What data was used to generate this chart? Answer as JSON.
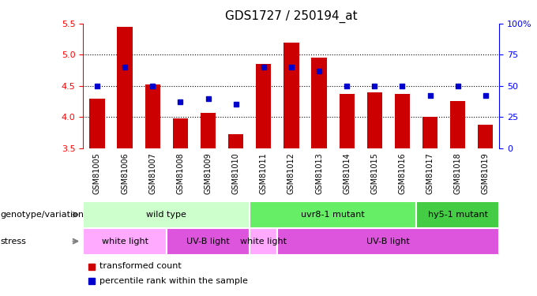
{
  "title": "GDS1727 / 250194_at",
  "samples": [
    "GSM81005",
    "GSM81006",
    "GSM81007",
    "GSM81008",
    "GSM81009",
    "GSM81010",
    "GSM81011",
    "GSM81012",
    "GSM81013",
    "GSM81014",
    "GSM81015",
    "GSM81016",
    "GSM81017",
    "GSM81018",
    "GSM81019"
  ],
  "transformed_count": [
    4.3,
    5.45,
    4.52,
    3.97,
    4.07,
    3.72,
    4.85,
    5.2,
    4.95,
    4.37,
    4.4,
    4.37,
    4.0,
    4.25,
    3.87
  ],
  "percentile_rank": [
    50,
    65,
    50,
    37,
    40,
    35,
    65,
    65,
    62,
    50,
    50,
    50,
    42,
    50,
    42
  ],
  "ylim": [
    3.5,
    5.5
  ],
  "yticks_left": [
    3.5,
    4.0,
    4.5,
    5.0,
    5.5
  ],
  "yticks_right": [
    0,
    25,
    50,
    75,
    100
  ],
  "bar_color": "#cc0000",
  "dot_color": "#0000cc",
  "bar_width": 0.55,
  "genotype_labels": [
    {
      "label": "wild type",
      "start": 0,
      "end": 6,
      "color": "#ccffcc"
    },
    {
      "label": "uvr8-1 mutant",
      "start": 6,
      "end": 12,
      "color": "#66ee66"
    },
    {
      "label": "hy5-1 mutant",
      "start": 12,
      "end": 15,
      "color": "#44cc44"
    }
  ],
  "stress_labels": [
    {
      "label": "white light",
      "start": 0,
      "end": 3,
      "color": "#ffaaff"
    },
    {
      "label": "UV-B light",
      "start": 3,
      "end": 6,
      "color": "#dd55dd"
    },
    {
      "label": "white light",
      "start": 6,
      "end": 7,
      "color": "#ffaaff"
    },
    {
      "label": "UV-B light",
      "start": 7,
      "end": 15,
      "color": "#dd55dd"
    }
  ],
  "legend_red_label": "transformed count",
  "legend_blue_label": "percentile rank within the sample",
  "genotype_arrow_label": "genotype/variation",
  "stress_arrow_label": "stress",
  "xtick_bg_color": "#cccccc",
  "grid_yticks": [
    4.0,
    4.5,
    5.0
  ]
}
